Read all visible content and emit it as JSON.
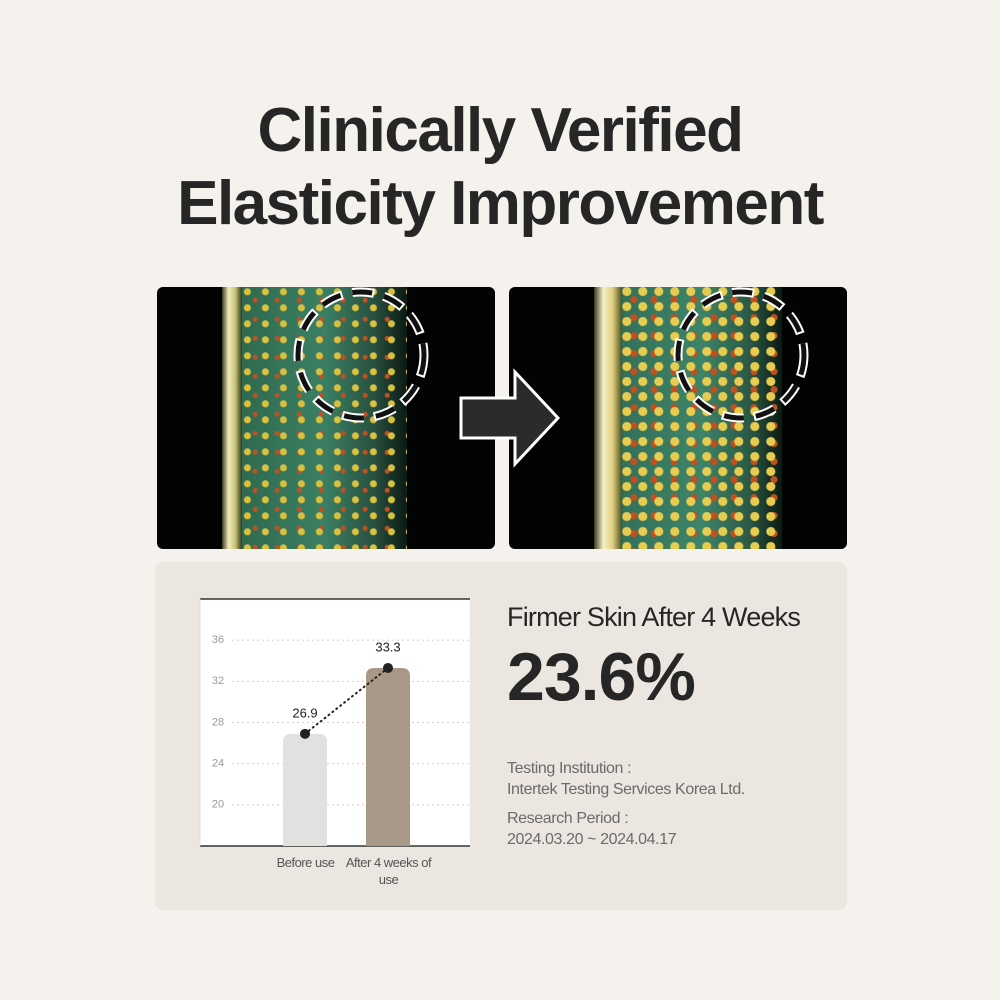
{
  "title_lines": [
    "Clinically Verified",
    "Elasticity Improvement"
  ],
  "chart_data": {
    "type": "bar",
    "categories": [
      "Before use",
      "After 4 weeks of use"
    ],
    "values": [
      26.9,
      33.3
    ],
    "colors": [
      "#e3e1df",
      "#a89888"
    ],
    "ylim": [
      16,
      40
    ],
    "yticks": [
      20,
      24,
      28,
      32,
      36
    ],
    "grid": true,
    "connector": "dotted"
  },
  "result": {
    "label": "Firmer Skin After 4 Weeks",
    "value": "23.6%"
  },
  "info": {
    "institution_label": "Testing Institution :",
    "institution": "Intertek Testing Services Korea Ltd.",
    "period_label": "Research Period :",
    "period": "2024.03.20 ~ 2024.04.17"
  }
}
